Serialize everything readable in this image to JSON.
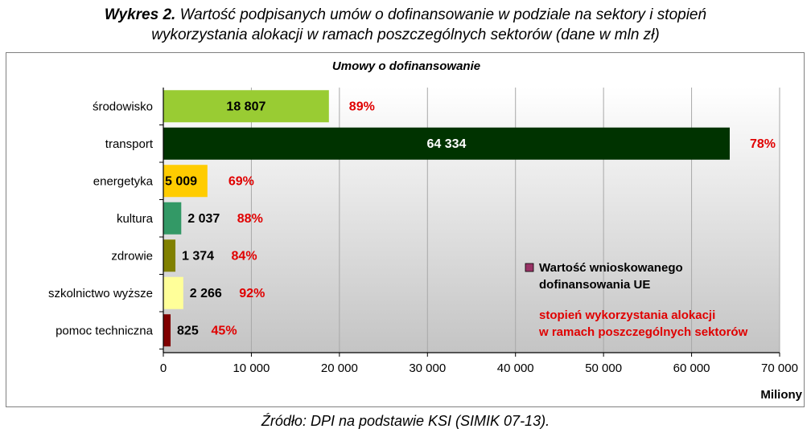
{
  "figure": {
    "title_lead": "Wykres 2.",
    "title_line1": " Wartość podpisanych umów o dofinansowanie w podziale na sektory i stopień",
    "title_line2": "wykorzystania alokacji w ramach poszczególnych sektorów (dane w mln zł)",
    "source": "Źródło: DPI na podstawie KSI (SIMIK 07-13)."
  },
  "chart_data": {
    "type": "bar",
    "orientation": "horizontal",
    "title": "Umowy o dofinansowanie",
    "xlabel": "Miliony",
    "ylabel": "",
    "xlim": [
      0,
      70000
    ],
    "xticks": [
      0,
      10000,
      20000,
      30000,
      40000,
      50000,
      60000,
      70000
    ],
    "xtick_labels": [
      "0",
      "10 000",
      "20 000",
      "30 000",
      "40 000",
      "50 000",
      "60 000",
      "70 000"
    ],
    "grid": true,
    "categories": [
      "środowisko",
      "transport",
      "energetyka",
      "kultura",
      "zdrowie",
      "szkolnictwo wyższe",
      "pomoc techniczna"
    ],
    "values": [
      18807,
      64334,
      5009,
      2037,
      1374,
      2266,
      825
    ],
    "value_labels": [
      "18 807",
      "64 334",
      "5 009",
      "2 037",
      "1 374",
      "2 266",
      "825"
    ],
    "percent_labels": [
      "89%",
      "78%",
      "69%",
      "88%",
      "84%",
      "92%",
      "45%"
    ],
    "bar_colors": [
      "#99cc33",
      "#003300",
      "#ffcc00",
      "#339966",
      "#808000",
      "#ffff99",
      "#800000"
    ],
    "value_label_colors": [
      "#000000",
      "#ffffff",
      "#000000",
      "#000000",
      "#000000",
      "#000000",
      "#000000"
    ],
    "percent_color": "#e00000",
    "legend": {
      "placement": "lower-right",
      "series_marker_color": "#993366",
      "series_line1": "Wartość wnioskowanego",
      "series_line2": "dofinansowania UE",
      "note_line1": "stopień wykorzystania alokacji",
      "note_line2": "w ramach poszczególnych sektorów"
    }
  }
}
